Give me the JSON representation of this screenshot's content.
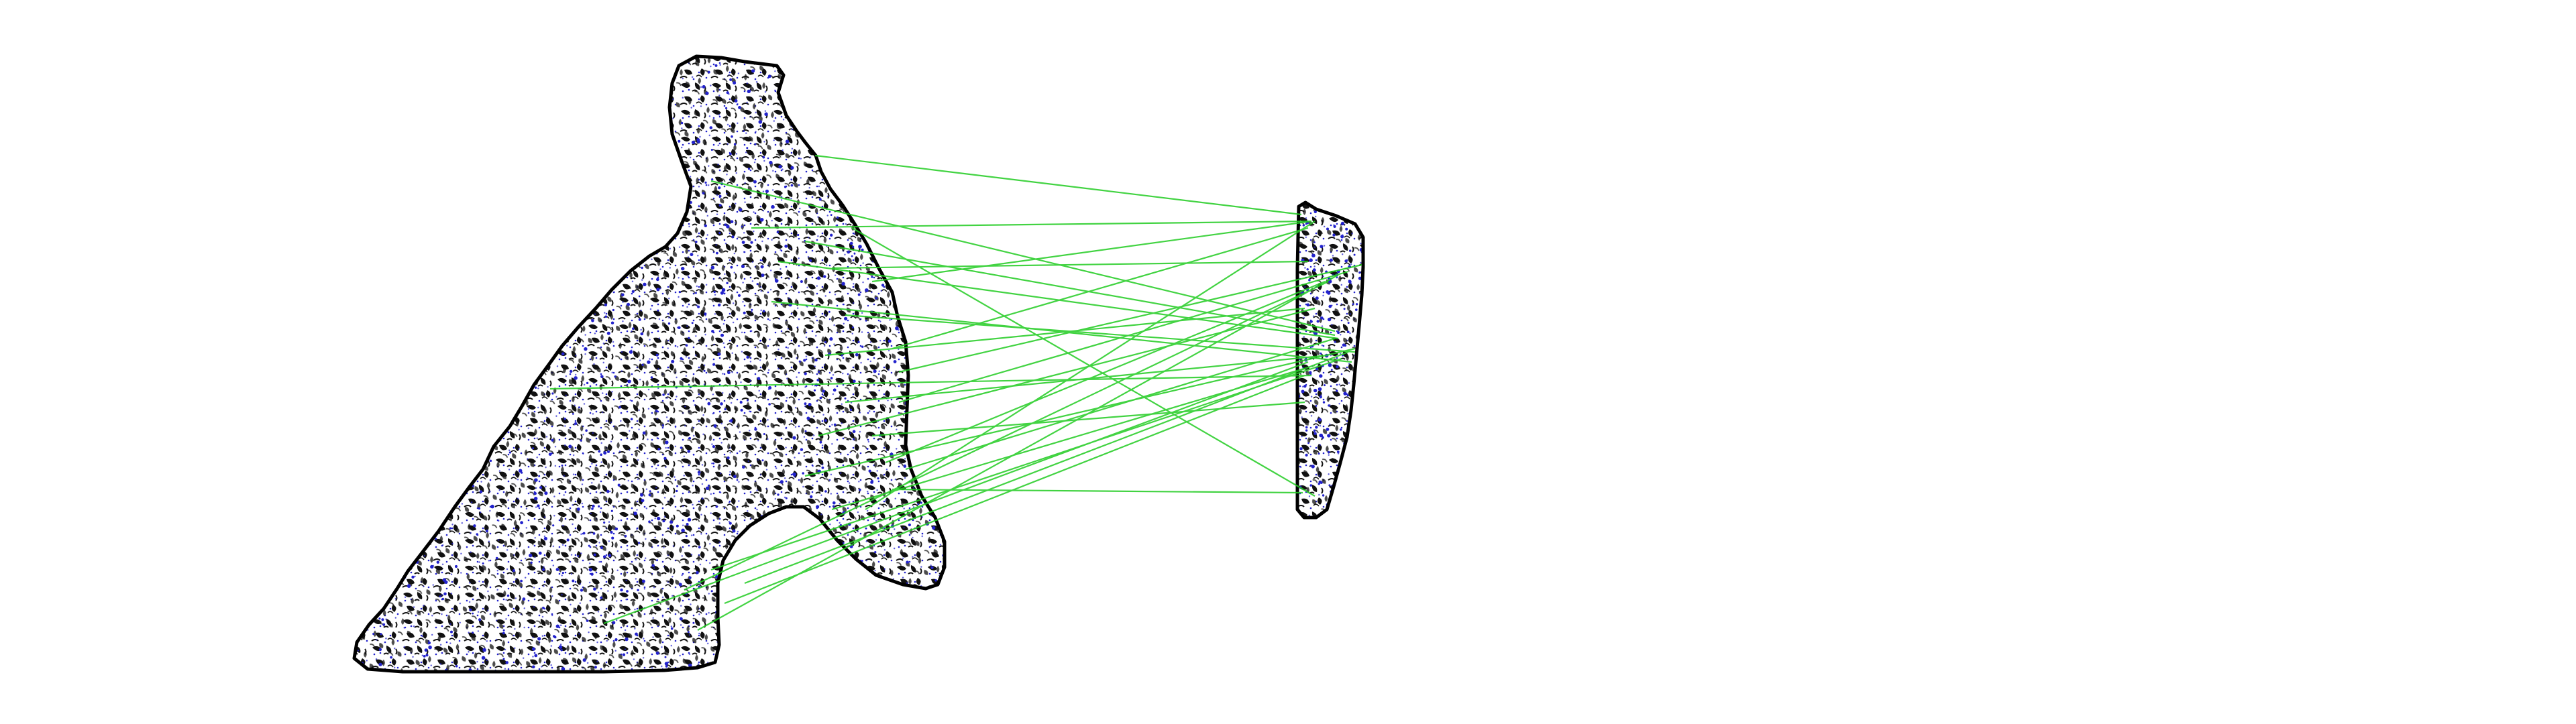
{
  "scene": {
    "background_color": "#ffffff",
    "outline_color": "#000000",
    "keypoint_color": "#2222cc",
    "match_line_color": "#22cc22",
    "match_count": 30,
    "left_fragment": "large-tissue-section",
    "right_fragment": "small-tissue-strip"
  }
}
